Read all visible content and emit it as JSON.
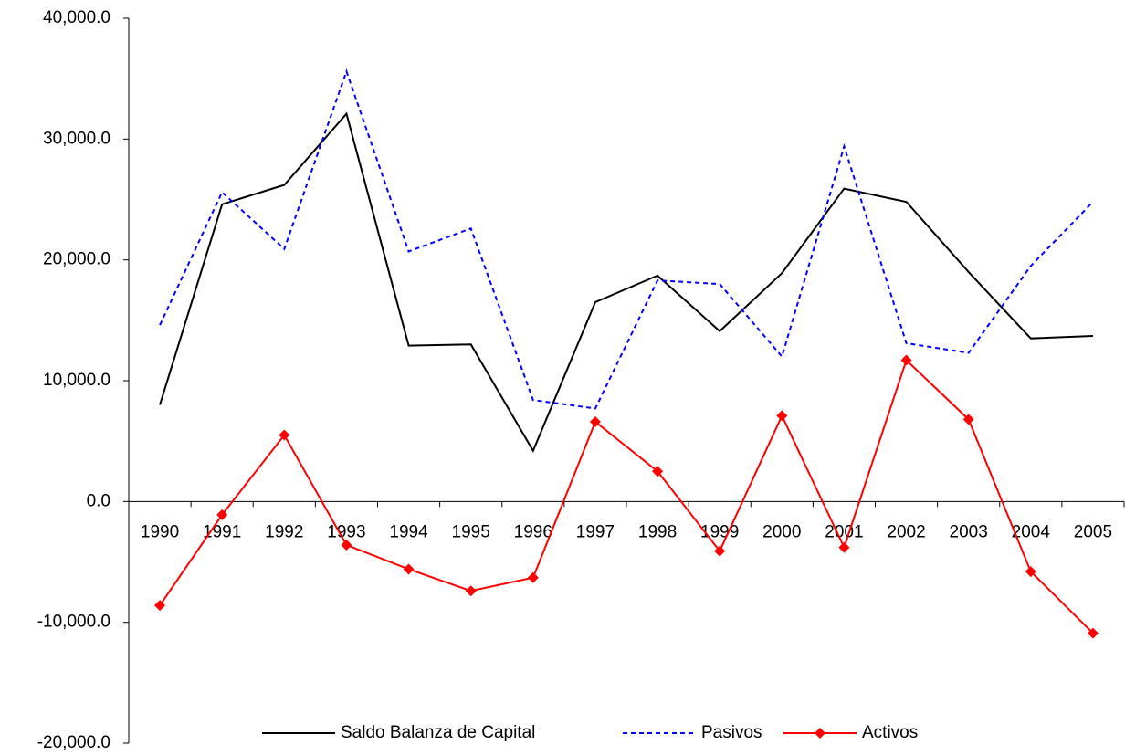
{
  "chart_data": {
    "type": "line",
    "categories": [
      "1990",
      "1991",
      "1992",
      "1993",
      "1994",
      "1995",
      "1996",
      "1997",
      "1998",
      "1999",
      "2000",
      "2001",
      "2002",
      "2003",
      "2004",
      "2005"
    ],
    "series": [
      {
        "name": "Saldo Balanza de Capital",
        "color": "#000000",
        "values": [
          8000,
          24600,
          26200,
          32100,
          12900,
          13000,
          4200,
          16500,
          18700,
          14100,
          18900,
          25900,
          24800,
          19000,
          13500,
          13700
        ]
      },
      {
        "name": "Pasivos",
        "color": "#0000ff",
        "dash": true,
        "values": [
          14600,
          25600,
          20900,
          35600,
          20700,
          22600,
          8400,
          7700,
          18300,
          18000,
          12000,
          29400,
          13100,
          12300,
          19500,
          24800
        ]
      },
      {
        "name": "Activos",
        "color": "#ff0000",
        "marker": "diamond",
        "values": [
          -8600,
          -1100,
          5500,
          -3600,
          -5600,
          -7400,
          -6300,
          6600,
          2500,
          -4100,
          7100,
          -3800,
          11700,
          6800,
          -5800,
          -10900
        ]
      }
    ],
    "ylim": [
      -20000,
      40000
    ],
    "yticks": [
      {
        "value": -20000,
        "label": "-20,000.0"
      },
      {
        "value": -10000,
        "label": "-10,000.0"
      },
      {
        "value": 0,
        "label": "0.0"
      },
      {
        "value": 10000,
        "label": "10,000.0"
      },
      {
        "value": 20000,
        "label": "20,000.0"
      },
      {
        "value": 30000,
        "label": "30,000.0"
      },
      {
        "value": 40000,
        "label": "40,000.0"
      }
    ],
    "legend": "bottom"
  }
}
